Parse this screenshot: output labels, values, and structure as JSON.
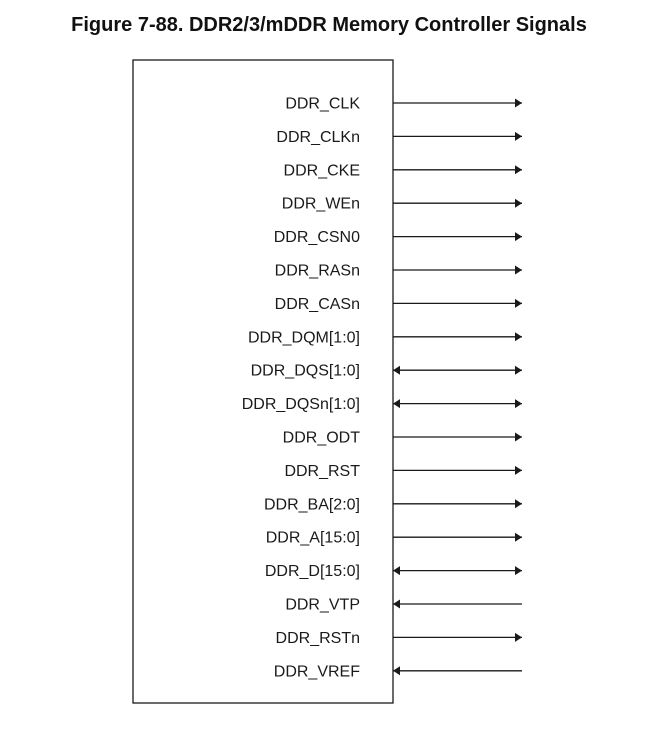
{
  "figure": {
    "title": "Figure 7-88. DDR2/3/mDDR Memory Controller Signals"
  },
  "signals": [
    {
      "name": "DDR_CLK",
      "direction": "out"
    },
    {
      "name": "DDR_CLKn",
      "direction": "out"
    },
    {
      "name": "DDR_CKE",
      "direction": "out"
    },
    {
      "name": "DDR_WEn",
      "direction": "out"
    },
    {
      "name": "DDR_CSN0",
      "direction": "out"
    },
    {
      "name": "DDR_RASn",
      "direction": "out"
    },
    {
      "name": "DDR_CASn",
      "direction": "out"
    },
    {
      "name": "DDR_DQM[1:0]",
      "direction": "out"
    },
    {
      "name": "DDR_DQS[1:0]",
      "direction": "bidir"
    },
    {
      "name": "DDR_DQSn[1:0]",
      "direction": "bidir"
    },
    {
      "name": "DDR_ODT",
      "direction": "out"
    },
    {
      "name": "DDR_RST",
      "direction": "out"
    },
    {
      "name": "DDR_BA[2:0]",
      "direction": "out"
    },
    {
      "name": "DDR_A[15:0]",
      "direction": "out"
    },
    {
      "name": "DDR_D[15:0]",
      "direction": "bidir"
    },
    {
      "name": "DDR_VTP",
      "direction": "in"
    },
    {
      "name": "DDR_RSTn",
      "direction": "out"
    },
    {
      "name": "DDR_VREF",
      "direction": "in"
    }
  ],
  "colors": {
    "line": "#1a1a1a",
    "text": "#1a1a1a"
  }
}
